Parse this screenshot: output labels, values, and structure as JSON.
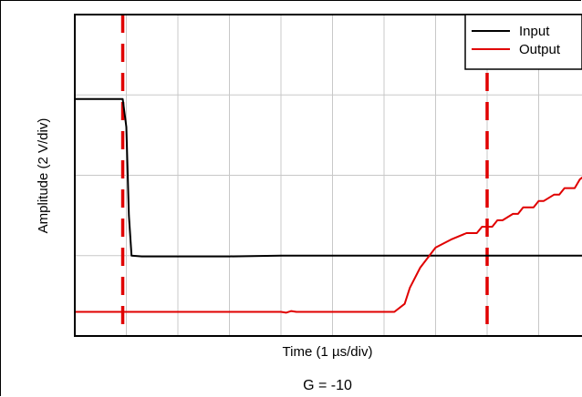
{
  "chart_data": {
    "type": "line",
    "title": "",
    "xlabel": "Time (1 µs/div)",
    "ylabel": "Amplitude (2 V/div)",
    "caption": "G = -10",
    "xlim": [
      0,
      10
    ],
    "ylim": [
      0,
      4
    ],
    "x_units": "div",
    "y_units": "div",
    "grid": true,
    "legend_position": "top-right",
    "series": [
      {
        "name": "Input",
        "color": "#000000",
        "x": [
          0,
          0.93,
          1.0,
          1.05,
          1.1,
          1.3,
          2,
          3,
          4,
          5,
          6,
          7,
          8,
          9,
          10
        ],
        "y": [
          2.95,
          2.95,
          2.6,
          1.5,
          1.0,
          0.99,
          0.99,
          0.99,
          1.0,
          1.0,
          1.0,
          1.0,
          1.0,
          1.0,
          1.0
        ]
      },
      {
        "name": "Output",
        "color": "#e00000",
        "x": [
          0,
          2.5,
          4,
          4.1,
          4.2,
          4.3,
          4.45,
          6.2,
          6.4,
          6.5,
          6.7,
          7.0,
          7.3,
          7.6,
          7.8,
          7.9,
          8.1,
          8.2,
          8.3,
          8.5,
          8.6,
          8.7,
          8.9,
          9.0,
          9.1,
          9.3,
          9.4,
          9.5,
          9.7,
          9.8,
          9.9,
          10.0
        ],
        "y": [
          0.3,
          0.3,
          0.3,
          0.29,
          0.31,
          0.3,
          0.3,
          0.3,
          0.4,
          0.6,
          0.85,
          1.1,
          1.2,
          1.28,
          1.28,
          1.36,
          1.36,
          1.44,
          1.44,
          1.52,
          1.52,
          1.6,
          1.6,
          1.68,
          1.68,
          1.76,
          1.76,
          1.84,
          1.84,
          1.95,
          2.0,
          2.07
        ]
      }
    ],
    "markers": [
      {
        "x": 0.93,
        "color": "#e00000",
        "style": "dashed"
      },
      {
        "x": 8.0,
        "color": "#e00000",
        "style": "dashed"
      }
    ]
  }
}
